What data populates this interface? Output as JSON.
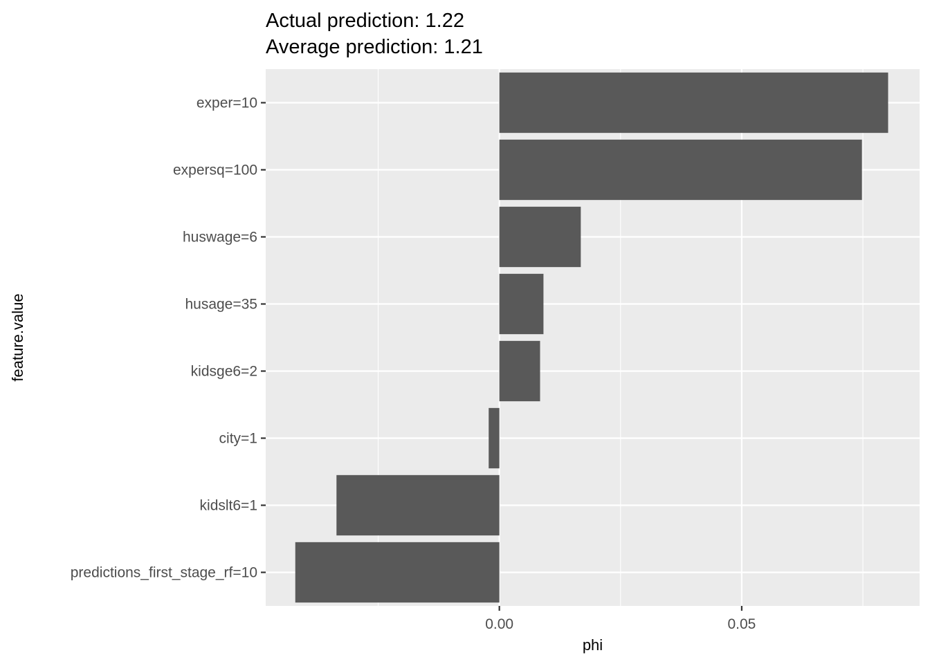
{
  "title": {
    "line1": "Actual prediction: 1.22",
    "line2": "Average prediction: 1.21"
  },
  "colors": {
    "panel_background": "#ebebeb",
    "grid": "#ffffff",
    "bar_fill": "#595959",
    "tick_text": "#4d4d4d",
    "tick_mark": "#333333"
  },
  "chart_data": {
    "type": "bar",
    "orientation": "horizontal",
    "xlabel": "phi",
    "ylabel": "feature.value",
    "xlim": [
      -0.0482,
      0.0867
    ],
    "x_ticks": [
      0.0,
      0.05
    ],
    "x_tick_labels": [
      "0.00",
      "0.05"
    ],
    "grid": true,
    "categories": [
      "exper=10",
      "expersq=100",
      "huswage=6",
      "husage=35",
      "kidsge6=2",
      "city=1",
      "kidslt6=1",
      "predictions_first_stage_rf=10"
    ],
    "values": [
      0.0802,
      0.0748,
      0.0168,
      0.0091,
      0.0084,
      -0.0022,
      -0.0336,
      -0.0421
    ]
  }
}
